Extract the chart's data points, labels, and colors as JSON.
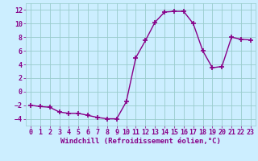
{
  "x": [
    0,
    1,
    2,
    3,
    4,
    5,
    6,
    7,
    8,
    9,
    10,
    11,
    12,
    13,
    14,
    15,
    16,
    17,
    18,
    19,
    20,
    21,
    22,
    23
  ],
  "y": [
    -2,
    -2.2,
    -2.3,
    -3.0,
    -3.2,
    -3.2,
    -3.5,
    -3.8,
    -4.0,
    -4.0,
    -1.5,
    5.0,
    7.5,
    10.2,
    11.7,
    11.8,
    11.8,
    10.0,
    6.0,
    3.5,
    3.7,
    8.0,
    7.7,
    7.6
  ],
  "line_color": "#880088",
  "marker": "+",
  "marker_size": 4,
  "marker_linewidth": 1.2,
  "line_width": 1.0,
  "background_color": "#cceeff",
  "grid_color": "#99cccc",
  "xlabel": "Windchill (Refroidissement éolien,°C)",
  "xlabel_fontsize": 6.5,
  "xlabel_color": "#880088",
  "tick_color": "#880088",
  "tick_fontsize": 6.0,
  "xlim": [
    -0.5,
    23.5
  ],
  "ylim": [
    -5,
    13
  ],
  "yticks": [
    -4,
    -2,
    0,
    2,
    4,
    6,
    8,
    10,
    12
  ],
  "xticks": [
    0,
    1,
    2,
    3,
    4,
    5,
    6,
    7,
    8,
    9,
    10,
    11,
    12,
    13,
    14,
    15,
    16,
    17,
    18,
    19,
    20,
    21,
    22,
    23
  ]
}
